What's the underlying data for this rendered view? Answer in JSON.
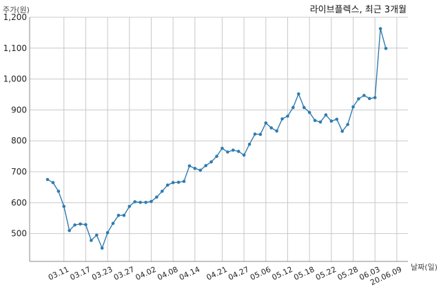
{
  "chart_data": {
    "type": "line",
    "title": "라이브플렉스, 최근 3개월",
    "xlabel": "날짜(일)",
    "ylabel": "주가(원)",
    "ylim": [
      410,
      1200
    ],
    "yticks": [
      500,
      600,
      700,
      800,
      900,
      1000,
      1100,
      1200
    ],
    "ytick_labels": [
      "500",
      "600",
      "700",
      "800",
      "900",
      "1,000",
      "1,100",
      "1,200"
    ],
    "grid": true,
    "line_color": "#2e7bb0",
    "xtick_labels": [
      "03.11",
      "03.17",
      "03.23",
      "03.27",
      "04.02",
      "04.08",
      "04.14",
      "04.21",
      "04.27",
      "05.06",
      "05.12",
      "05.18",
      "05.22",
      "05.28",
      "06.03",
      "20.06.09"
    ],
    "xtick_index": [
      3,
      7,
      11,
      15,
      19,
      23,
      27,
      32,
      36,
      40,
      44,
      48,
      52,
      56,
      60,
      64
    ],
    "values": [
      675,
      665,
      637,
      588,
      510,
      528,
      531,
      529,
      478,
      495,
      453,
      503,
      533,
      559,
      559,
      588,
      603,
      601,
      601,
      604,
      618,
      637,
      657,
      665,
      666,
      669,
      719,
      711,
      705,
      720,
      732,
      750,
      776,
      764,
      770,
      766,
      754,
      789,
      822,
      821,
      858,
      842,
      832,
      871,
      880,
      908,
      952,
      908,
      892,
      866,
      861,
      884,
      864,
      870,
      831,
      853,
      910,
      936,
      947,
      937,
      940,
      1163,
      1099
    ]
  }
}
